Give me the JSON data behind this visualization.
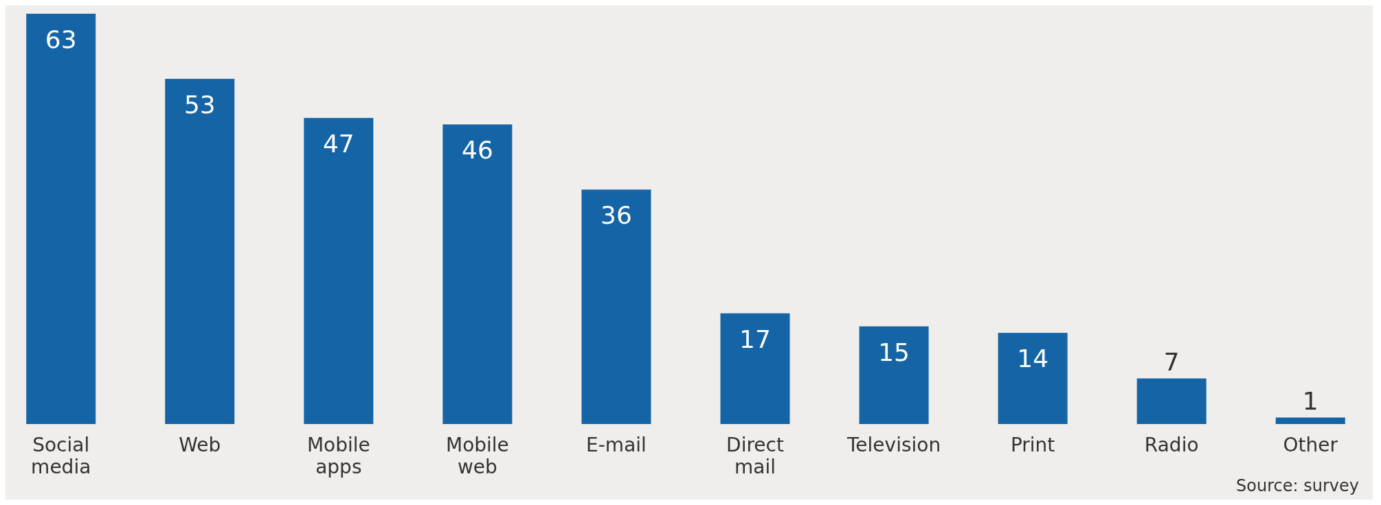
{
  "chart_data": {
    "type": "bar",
    "categories": [
      "Social media",
      "Web",
      "Mobile apps",
      "Mobile web",
      "E-mail",
      "Direct mail",
      "Television",
      "Print",
      "Radio",
      "Other"
    ],
    "values": [
      63,
      53,
      47,
      46,
      36,
      17,
      15,
      14,
      7,
      1
    ],
    "color": "#1565a6",
    "data_labels": true,
    "annotations": [
      "Source: survey"
    ]
  }
}
